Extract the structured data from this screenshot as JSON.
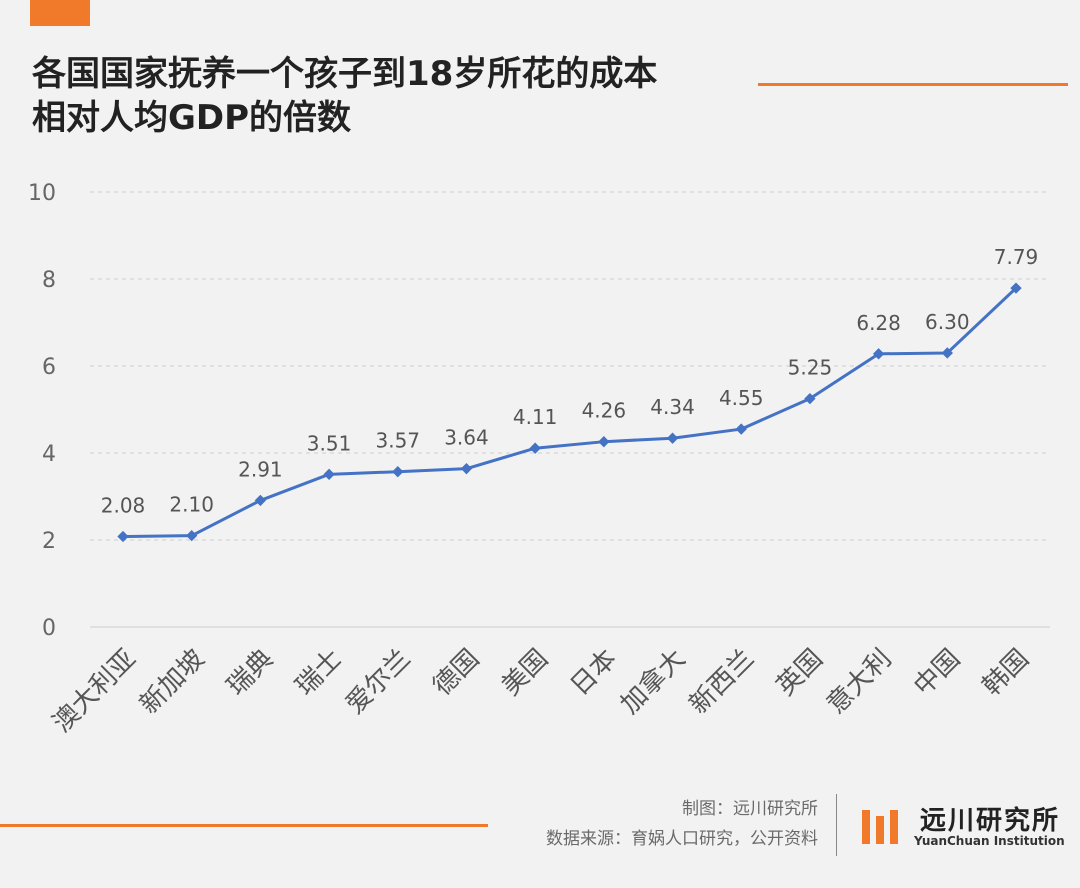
{
  "title": {
    "line1": "各国国家抚养一个孩子到18岁所花的成本",
    "line2": "相对人均GDP的倍数"
  },
  "footer": {
    "credit_line1": "制图：远川研究所",
    "credit_line2": "数据来源：育娲人口研究，公开资料",
    "logo_name": "远川研究所",
    "logo_sub": "YuanChuan Institution"
  },
  "colors": {
    "accent": "#f07a2a",
    "series": "#4472c4",
    "grid": "#cfcfcf"
  },
  "chart_data": {
    "type": "line",
    "title": "各国国家抚养一个孩子到18岁所花的成本相对人均GDP的倍数",
    "categories": [
      "澳大利亚",
      "新加坡",
      "瑞典",
      "瑞士",
      "爱尔兰",
      "德国",
      "美国",
      "日本",
      "加拿大",
      "新西兰",
      "英国",
      "意大利",
      "中国",
      "韩国"
    ],
    "values": [
      2.08,
      2.1,
      2.91,
      3.51,
      3.57,
      3.64,
      4.11,
      4.26,
      4.34,
      4.55,
      5.25,
      6.28,
      6.3,
      7.79
    ],
    "labels": [
      "2.08",
      "2.10",
      "2.91",
      "3.51",
      "3.57",
      "3.64",
      "4.11",
      "4.26",
      "4.34",
      "4.55",
      "5.25",
      "6.28",
      "6.30",
      "7.79"
    ],
    "yticks": [
      "0",
      "2",
      "4",
      "6",
      "8",
      "10"
    ],
    "ylim": [
      0,
      10
    ],
    "grid": true,
    "grid_style": "dashed",
    "xlabel": "",
    "ylabel": ""
  }
}
